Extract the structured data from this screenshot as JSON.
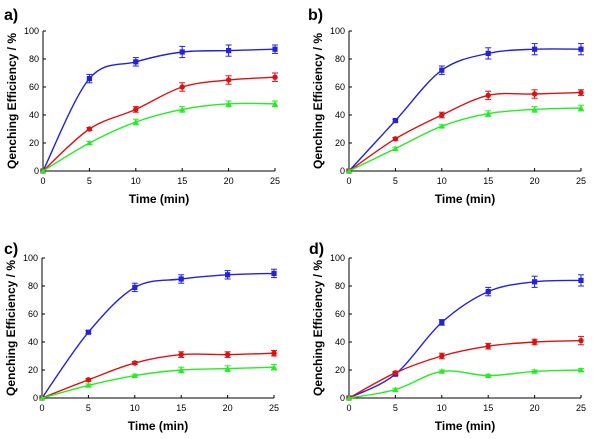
{
  "chart_data": [
    {
      "panel_label": "a)",
      "type": "line",
      "xlabel": "Time (min)",
      "ylabel": "Qenching Efficiency / %",
      "xlim": [
        0,
        25
      ],
      "ylim": [
        0,
        100
      ],
      "x_ticks": [
        0,
        5,
        10,
        15,
        20,
        25
      ],
      "y_ticks": [
        0,
        20,
        40,
        60,
        80,
        100
      ],
      "grid": false,
      "series": [
        {
          "color": "#2222dd",
          "marker": "square",
          "x": [
            0,
            5,
            10,
            15,
            20,
            25
          ],
          "values": [
            0,
            66,
            78,
            85,
            86,
            87
          ],
          "errors": [
            0,
            3,
            3,
            4,
            4,
            3
          ]
        },
        {
          "color": "#dd1111",
          "marker": "circle",
          "x": [
            0,
            5,
            10,
            15,
            20,
            25
          ],
          "values": [
            0,
            30,
            44,
            60,
            65,
            67
          ],
          "errors": [
            0,
            1,
            2,
            3,
            3,
            3
          ]
        },
        {
          "color": "#22ee22",
          "marker": "triangle",
          "x": [
            0,
            5,
            10,
            15,
            20,
            25
          ],
          "values": [
            0,
            20,
            35,
            44,
            48,
            48
          ],
          "errors": [
            0,
            1,
            2,
            2,
            2,
            2
          ]
        }
      ]
    },
    {
      "panel_label": "b)",
      "type": "line",
      "xlabel": "Time (min)",
      "ylabel": "Qenching Efficiency / %",
      "xlim": [
        0,
        25
      ],
      "ylim": [
        0,
        100
      ],
      "x_ticks": [
        0,
        5,
        10,
        15,
        20,
        25
      ],
      "y_ticks": [
        0,
        20,
        40,
        60,
        80,
        100
      ],
      "grid": false,
      "series": [
        {
          "color": "#2222dd",
          "marker": "square",
          "x": [
            0,
            5,
            10,
            15,
            20,
            25
          ],
          "values": [
            0,
            36,
            72,
            84,
            87,
            87
          ],
          "errors": [
            0,
            1,
            3,
            4,
            4,
            4
          ]
        },
        {
          "color": "#dd1111",
          "marker": "circle",
          "x": [
            0,
            5,
            10,
            15,
            20,
            25
          ],
          "values": [
            0,
            23,
            40,
            54,
            55,
            56
          ],
          "errors": [
            0,
            1,
            2,
            3,
            3,
            2
          ]
        },
        {
          "color": "#22ee22",
          "marker": "triangle",
          "x": [
            0,
            5,
            10,
            15,
            20,
            25
          ],
          "values": [
            0,
            16,
            32,
            41,
            44,
            45
          ],
          "errors": [
            0,
            1,
            1,
            2,
            2,
            2
          ]
        }
      ]
    },
    {
      "panel_label": "c)",
      "type": "line",
      "xlabel": "Time (min)",
      "ylabel": "Qenching Efficiency / %",
      "xlim": [
        0,
        25
      ],
      "ylim": [
        0,
        100
      ],
      "x_ticks": [
        0,
        5,
        10,
        15,
        20,
        25
      ],
      "y_ticks": [
        0,
        20,
        40,
        60,
        80,
        100
      ],
      "grid": false,
      "series": [
        {
          "color": "#2222dd",
          "marker": "square",
          "x": [
            0,
            5,
            10,
            15,
            20,
            25
          ],
          "values": [
            0,
            47,
            79,
            85,
            88,
            89
          ],
          "errors": [
            0,
            1,
            3,
            3,
            3,
            3
          ]
        },
        {
          "color": "#dd1111",
          "marker": "circle",
          "x": [
            0,
            5,
            10,
            15,
            20,
            25
          ],
          "values": [
            0,
            13,
            25,
            31,
            31,
            32
          ],
          "errors": [
            0,
            1,
            1,
            2,
            2,
            2
          ]
        },
        {
          "color": "#22ee22",
          "marker": "triangle",
          "x": [
            0,
            5,
            10,
            15,
            20,
            25
          ],
          "values": [
            0,
            9,
            16,
            20,
            21,
            22
          ],
          "errors": [
            0,
            1,
            1,
            2,
            2,
            2
          ]
        }
      ]
    },
    {
      "panel_label": "d)",
      "type": "line",
      "xlabel": "Time (min)",
      "ylabel": "Qenching Efficiency / %",
      "xlim": [
        0,
        25
      ],
      "ylim": [
        0,
        100
      ],
      "x_ticks": [
        0,
        5,
        10,
        15,
        20,
        25
      ],
      "y_ticks": [
        0,
        20,
        40,
        60,
        80,
        100
      ],
      "grid": false,
      "series": [
        {
          "color": "#2222dd",
          "marker": "square",
          "x": [
            0,
            5,
            10,
            15,
            20,
            25
          ],
          "values": [
            0,
            17,
            54,
            76,
            83,
            84
          ],
          "errors": [
            0,
            1,
            2,
            3,
            4,
            4
          ]
        },
        {
          "color": "#dd1111",
          "marker": "circle",
          "x": [
            0,
            5,
            10,
            15,
            20,
            25
          ],
          "values": [
            0,
            18,
            30,
            37,
            40,
            41
          ],
          "errors": [
            0,
            1,
            2,
            2,
            2,
            3
          ]
        },
        {
          "color": "#22ee22",
          "marker": "triangle",
          "x": [
            0,
            5,
            10,
            15,
            20,
            25
          ],
          "values": [
            0,
            6,
            19,
            16,
            19,
            20
          ],
          "errors": [
            0,
            1,
            1,
            1,
            1,
            1
          ]
        }
      ]
    }
  ]
}
